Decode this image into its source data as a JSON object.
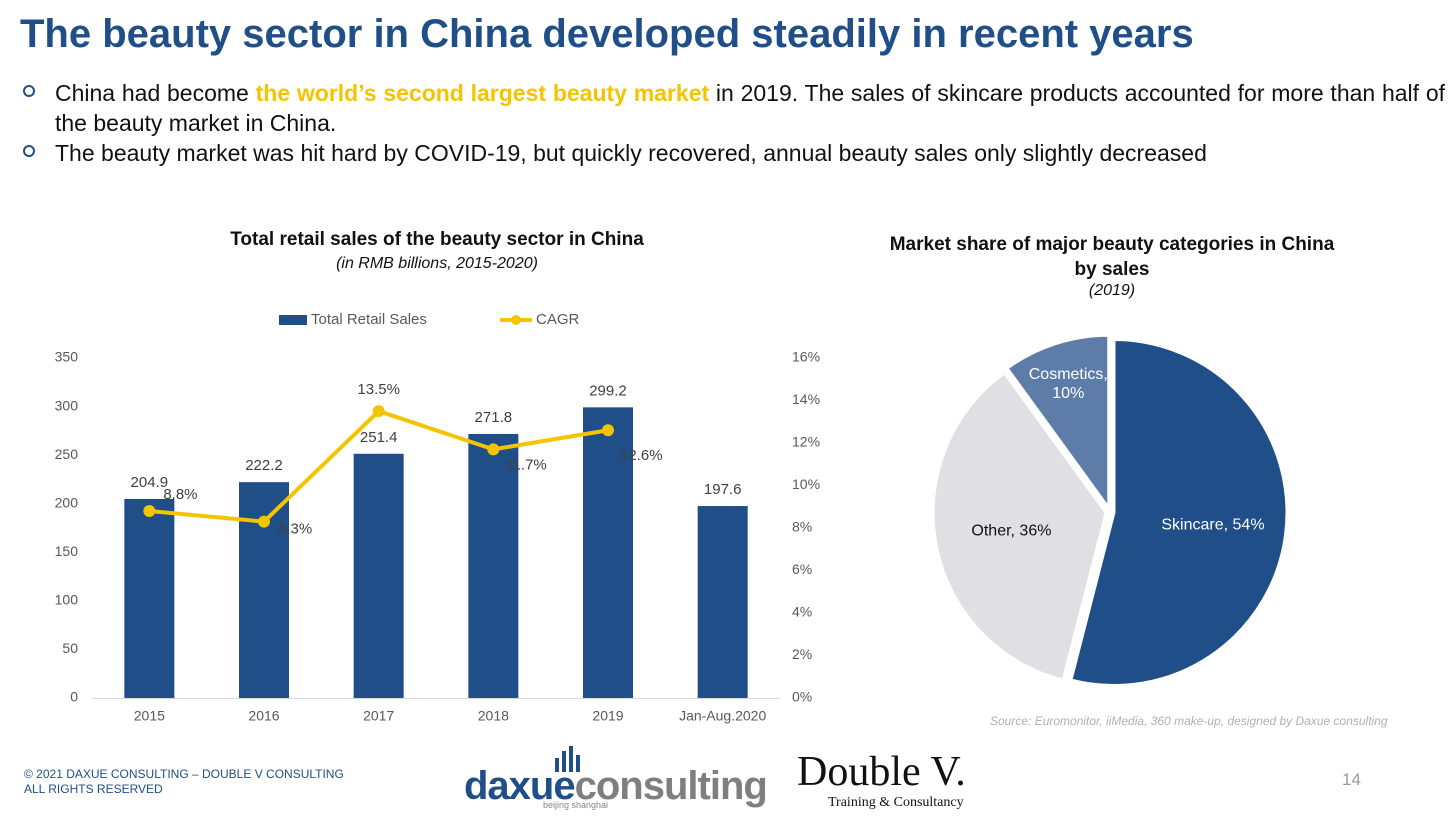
{
  "title": "The beauty sector in China developed steadily in recent years",
  "bullets": [
    {
      "before": "China had become ",
      "highlight": "the world’s second largest beauty market",
      "after": " in 2019. The sales of skincare products accounted for more than half of the beauty market in China."
    },
    {
      "before": "The beauty market was hit hard by COVID-19, but quickly recovered, annual beauty sales only slightly decreased"
    }
  ],
  "chart_data": [
    {
      "type": "bar",
      "title": "Total retail sales of the beauty sector in China",
      "subtitle": "(in RMB billions, 2015-2020)",
      "categories": [
        "2015",
        "2016",
        "2017",
        "2018",
        "2019",
        "Jan-Aug.2020"
      ],
      "series": [
        {
          "name": "Total Retail Sales",
          "color": "#1f4e89",
          "values": [
            204.9,
            222.2,
            251.4,
            271.8,
            299.2,
            197.6
          ]
        },
        {
          "name": "CAGR",
          "type": "line",
          "axis": "y2",
          "color": "#f5c400",
          "values": [
            8.8,
            8.3,
            13.5,
            11.7,
            12.6,
            null
          ],
          "value_labels": [
            "8.8%",
            "8.3%",
            "13.5%",
            "11.7%",
            "12.6%",
            null
          ]
        }
      ],
      "ylim": [
        0,
        350
      ],
      "yticks": [
        0,
        50,
        100,
        150,
        200,
        250,
        300,
        350
      ],
      "y2lim": [
        0,
        16
      ],
      "y2ticks": [
        {
          "value": 0,
          "label": "0%"
        },
        {
          "value": 2,
          "label": "2%"
        },
        {
          "value": 4,
          "label": "4%"
        },
        {
          "value": 6,
          "label": "6%"
        },
        {
          "value": 8,
          "label": "8%"
        },
        {
          "value": 10,
          "label": "10%"
        },
        {
          "value": 12,
          "label": "12%"
        },
        {
          "value": 14,
          "label": "14%"
        },
        {
          "value": 16,
          "label": "16%"
        }
      ],
      "legend": "top"
    },
    {
      "type": "pie",
      "title": "Market share of major beauty categories in China by sales",
      "subtitle": "(2019)",
      "categories": [
        "Skincare",
        "Other",
        "Cosmetics"
      ],
      "values": [
        54,
        36,
        10
      ],
      "value_labels": [
        "Skincare, 54%",
        "Other, 36%",
        "Cosmetics, 10%"
      ],
      "colors": [
        "#1f4e89",
        "#e0dfe3",
        "#5d7ca8"
      ]
    }
  ],
  "source": "Source: Euromonitor, iiMedia, 360 make-up, designed by Daxue consulting",
  "footer": [
    "© 2021 DAXUE CONSULTING  – DOUBLE V CONSULTING",
    "ALL RIGHTS RESERVED"
  ],
  "logos": {
    "daxue_a": "daxue",
    "daxue_b": "consulting",
    "daxue_sub": "beijing shanghai",
    "doublev": "Double V.",
    "doublev_sub": "Training & Consultancy"
  },
  "page_number": 14
}
